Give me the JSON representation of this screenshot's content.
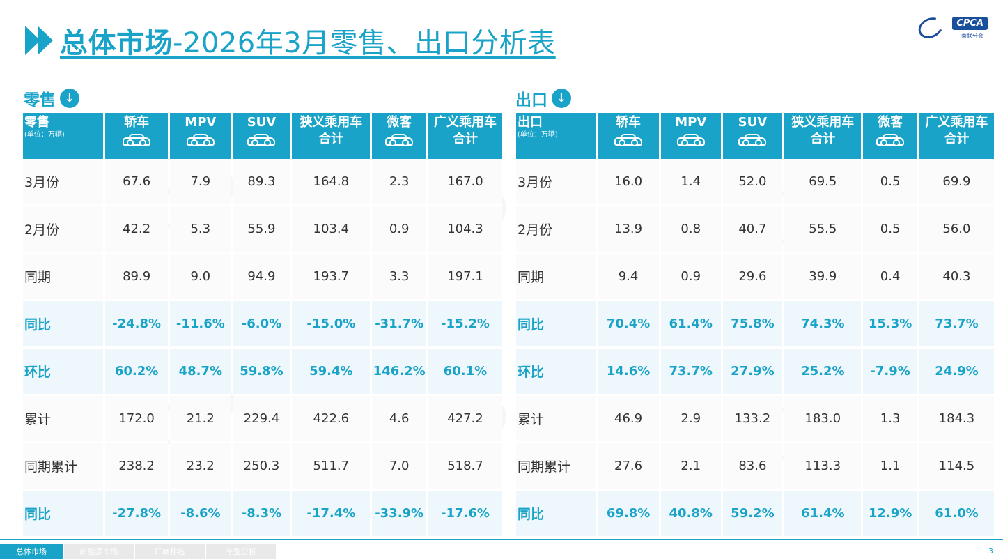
{
  "title": {
    "main": "总体市场",
    "rest": "-2026年3月零售、出口分析表"
  },
  "logo": {
    "badge": "CPCA",
    "sub": "乘联分会"
  },
  "colors": {
    "accent": "#1aa3c8",
    "highlight_bg": "#eef7fb"
  },
  "retail": {
    "label": "零售",
    "icon": "arrow-down-circle-icon",
    "header": {
      "first": "零售",
      "unit": "(单位：万辆)"
    },
    "columns": [
      "轿车",
      "MPV",
      "SUV",
      "狭义乘用车合计",
      "微客",
      "广义乘用车合计"
    ],
    "rows": [
      {
        "label": "3月份",
        "values": [
          "67.6",
          "7.9",
          "89.3",
          "164.8",
          "2.3",
          "167.0"
        ],
        "highlight": false
      },
      {
        "label": "2月份",
        "values": [
          "42.2",
          "5.3",
          "55.9",
          "103.4",
          "0.9",
          "104.3"
        ],
        "highlight": false
      },
      {
        "label": "同期",
        "values": [
          "89.9",
          "9.0",
          "94.9",
          "193.7",
          "3.3",
          "197.1"
        ],
        "highlight": false
      },
      {
        "label": "同比",
        "values": [
          "-24.8%",
          "-11.6%",
          "-6.0%",
          "-15.0%",
          "-31.7%",
          "-15.2%"
        ],
        "highlight": true
      },
      {
        "label": "环比",
        "values": [
          "60.2%",
          "48.7%",
          "59.8%",
          "59.4%",
          "146.2%",
          "60.1%"
        ],
        "highlight": true
      },
      {
        "label": "累计",
        "values": [
          "172.0",
          "21.2",
          "229.4",
          "422.6",
          "4.6",
          "427.2"
        ],
        "highlight": false
      },
      {
        "label": "同期累计",
        "values": [
          "238.2",
          "23.2",
          "250.3",
          "511.7",
          "7.0",
          "518.7"
        ],
        "highlight": false
      },
      {
        "label": "同比",
        "values": [
          "-27.8%",
          "-8.6%",
          "-8.3%",
          "-17.4%",
          "-33.9%",
          "-17.6%"
        ],
        "highlight": true
      }
    ]
  },
  "export": {
    "label": "出口",
    "icon": "arrow-down-circle-icon",
    "header": {
      "first": "出口",
      "unit": "(单位：万辆)"
    },
    "columns": [
      "轿车",
      "MPV",
      "SUV",
      "狭义乘用车合计",
      "微客",
      "广义乘用车合计"
    ],
    "rows": [
      {
        "label": "3月份",
        "values": [
          "16.0",
          "1.4",
          "52.0",
          "69.5",
          "0.5",
          "69.9"
        ],
        "highlight": false
      },
      {
        "label": "2月份",
        "values": [
          "13.9",
          "0.8",
          "40.7",
          "55.5",
          "0.5",
          "56.0"
        ],
        "highlight": false
      },
      {
        "label": "同期",
        "values": [
          "9.4",
          "0.9",
          "29.6",
          "39.9",
          "0.4",
          "40.3"
        ],
        "highlight": false
      },
      {
        "label": "同比",
        "values": [
          "70.4%",
          "61.4%",
          "75.8%",
          "74.3%",
          "15.3%",
          "73.7%"
        ],
        "highlight": true
      },
      {
        "label": "环比",
        "values": [
          "14.6%",
          "73.7%",
          "27.9%",
          "25.2%",
          "-7.9%",
          "24.9%"
        ],
        "highlight": true
      },
      {
        "label": "累计",
        "values": [
          "46.9",
          "2.9",
          "133.2",
          "183.0",
          "1.3",
          "184.3"
        ],
        "highlight": false
      },
      {
        "label": "同期累计",
        "values": [
          "27.6",
          "2.1",
          "83.6",
          "113.3",
          "1.1",
          "114.5"
        ],
        "highlight": false
      },
      {
        "label": "同比",
        "values": [
          "69.8%",
          "40.8%",
          "59.2%",
          "61.4%",
          "12.9%",
          "61.0%"
        ],
        "highlight": true
      }
    ]
  },
  "footer": {
    "tabs": [
      "总体市场",
      "新能源市场",
      "厂商排名",
      "车型分析"
    ],
    "page": "3"
  }
}
